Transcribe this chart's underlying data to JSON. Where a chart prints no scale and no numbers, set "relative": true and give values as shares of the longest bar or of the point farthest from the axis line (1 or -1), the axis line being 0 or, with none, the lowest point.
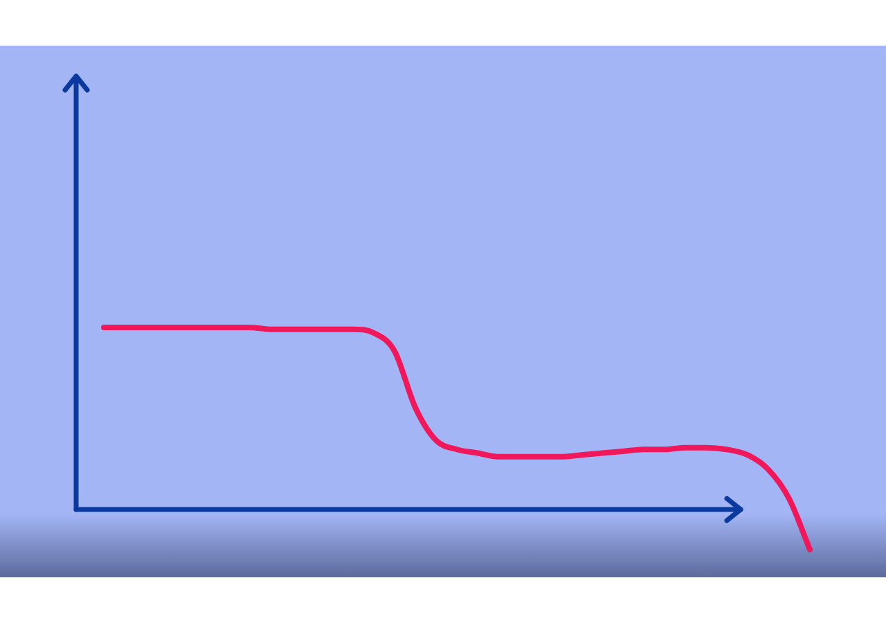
{
  "chart_data": {
    "type": "line",
    "relative": true,
    "categories": [
      null,
      null,
      null,
      null,
      null,
      null,
      null,
      null,
      null,
      null,
      null,
      null,
      null,
      null,
      null,
      null,
      null,
      null,
      null,
      null,
      null,
      null,
      null,
      null,
      null,
      null,
      null,
      null,
      null,
      null,
      null,
      null,
      null,
      null,
      null
    ],
    "series": [
      {
        "color": "#f0185a",
        "values": [
          1,
          1,
          1,
          1,
          1,
          1,
          1,
          1,
          0.99,
          0.99,
          0.99,
          0.99,
          0.99,
          0.97,
          0.87,
          0.56,
          0.38,
          0.33,
          0.31,
          0.29,
          0.29,
          0.29,
          0.29,
          0.3,
          0.31,
          0.32,
          0.33,
          0.33,
          0.34,
          0.34,
          0.33,
          0.3,
          0.22,
          0.06,
          -0.22
        ]
      }
    ],
    "ref_lines": [
      {
        "axis": "y",
        "value": 0,
        "color": "#0a3aa0"
      }
    ],
    "legend": false,
    "marker": "none",
    "line_style": "solid"
  }
}
